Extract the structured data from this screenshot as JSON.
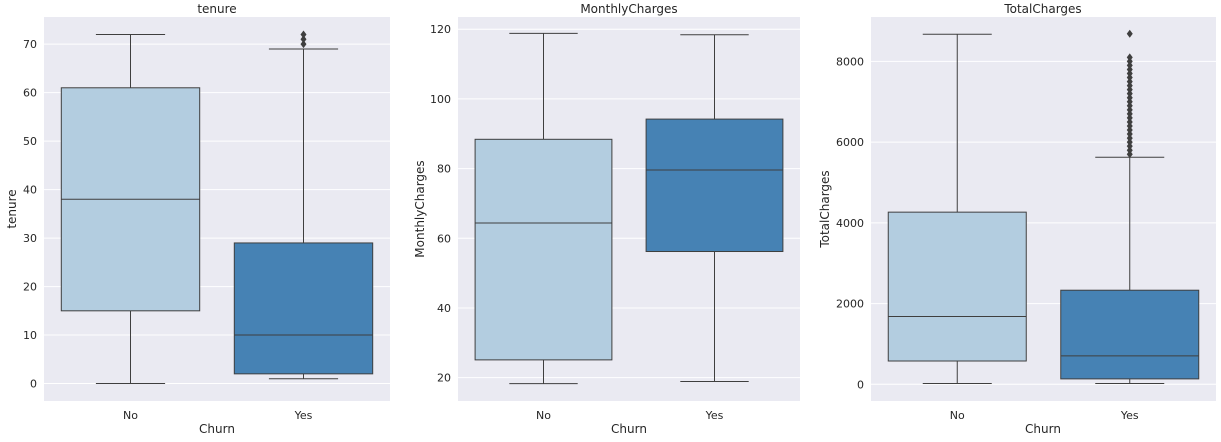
{
  "chart_data": [
    {
      "type": "box",
      "title": "tenure",
      "xlabel": "Churn",
      "ylabel": "tenure",
      "categories": [
        "No",
        "Yes"
      ],
      "colors": [
        "#b3cde0",
        "#4682b4"
      ],
      "ylim": [
        -3.6,
        75.6
      ],
      "yticks": [
        0,
        10,
        20,
        30,
        40,
        50,
        60,
        70
      ],
      "ytick_labels": [
        "0",
        "10",
        "20",
        "30",
        "40",
        "50",
        "60",
        "70"
      ],
      "grid": true,
      "boxes": [
        {
          "category": "No",
          "whisker_low": 0,
          "q1": 15,
          "median": 38,
          "q3": 61,
          "whisker_high": 72,
          "outliers": []
        },
        {
          "category": "Yes",
          "whisker_low": 1,
          "q1": 2,
          "median": 10,
          "q3": 29,
          "whisker_high": 69,
          "outliers": [
            70,
            71,
            72
          ]
        }
      ]
    },
    {
      "type": "box",
      "title": "MonthlyCharges",
      "xlabel": "Churn",
      "ylabel": "MonthlyCharges",
      "categories": [
        "No",
        "Yes"
      ],
      "colors": [
        "#b3cde0",
        "#4682b4"
      ],
      "ylim": [
        13.3,
        123.5
      ],
      "yticks": [
        20,
        40,
        60,
        80,
        100,
        120
      ],
      "ytick_labels": [
        "20",
        "40",
        "60",
        "80",
        "100",
        "120"
      ],
      "grid": true,
      "boxes": [
        {
          "category": "No",
          "whisker_low": 18.3,
          "q1": 25.1,
          "median": 64.4,
          "q3": 88.4,
          "whisker_high": 118.8,
          "outliers": []
        },
        {
          "category": "Yes",
          "whisker_low": 18.9,
          "q1": 56.2,
          "median": 79.6,
          "q3": 94.2,
          "whisker_high": 118.4,
          "outliers": []
        }
      ]
    },
    {
      "type": "box",
      "title": "TotalCharges",
      "xlabel": "Churn",
      "ylabel": "TotalCharges",
      "categories": [
        "No",
        "Yes"
      ],
      "colors": [
        "#b3cde0",
        "#4682b4"
      ],
      "ylim": [
        -414,
        9100
      ],
      "yticks": [
        0,
        2000,
        4000,
        6000,
        8000
      ],
      "ytick_labels": [
        "0",
        "2000",
        "4000",
        "6000",
        "8000"
      ],
      "grid": true,
      "boxes": [
        {
          "category": "No",
          "whisker_low": 18.8,
          "q1": 577,
          "median": 1680,
          "q3": 4265,
          "whisker_high": 8672,
          "outliers": []
        },
        {
          "category": "Yes",
          "whisker_low": 18.9,
          "q1": 134,
          "median": 704,
          "q3": 2331,
          "whisker_high": 5625,
          "outliers": [
            5700,
            5800,
            5900,
            6000,
            6100,
            6200,
            6300,
            6400,
            6500,
            6600,
            6700,
            6800,
            6900,
            7000,
            7100,
            7200,
            7300,
            7400,
            7500,
            7600,
            7700,
            7800,
            7900,
            8000,
            8100,
            8684
          ]
        }
      ]
    }
  ]
}
